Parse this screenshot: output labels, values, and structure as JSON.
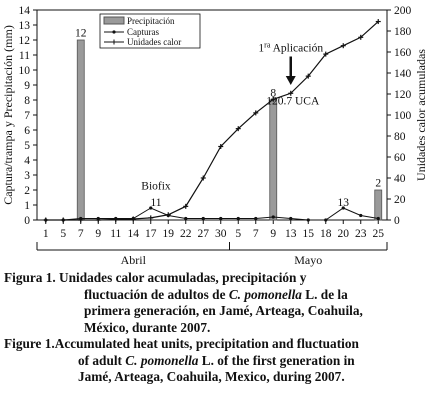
{
  "chart_data": {
    "type": "bar+line",
    "y_left_label": "Captura/trampa y Precipitación (mm)",
    "y_right_label": "Unidades calor acumuladas",
    "y_left_lim": [
      0,
      14
    ],
    "y_right_lim": [
      0,
      200
    ],
    "y_left_ticks": [
      "0",
      "1",
      "2",
      "3",
      "4",
      "5",
      "6",
      "7",
      "8",
      "9",
      "10",
      "11",
      "12",
      "13",
      "14"
    ],
    "y_right_ticks": [
      "0",
      "20",
      "40",
      "60",
      "80",
      "100",
      "120",
      "140",
      "160",
      "180",
      "200"
    ],
    "x_ticks": [
      "1",
      "5",
      "7",
      "9",
      "11",
      "14",
      "17",
      "19",
      "22",
      "27",
      "30",
      "5",
      "7",
      "9",
      "13",
      "15",
      "18",
      "20",
      "23",
      "25"
    ],
    "months": [
      {
        "name": "Abril"
      },
      {
        "name": "Mayo"
      }
    ],
    "legend": [
      "Precipitación",
      "Capturas",
      "Unidades calor"
    ],
    "series": [
      {
        "name": "Precipitación",
        "kind": "bar",
        "color": "#9a9a9a",
        "points": [
          {
            "x": 2.0,
            "y": 12,
            "label": "12"
          },
          {
            "x": 13.0,
            "y": 8,
            "label": "8"
          },
          {
            "x": 19.0,
            "y": 2,
            "label": "2"
          }
        ]
      },
      {
        "name": "Capturas",
        "kind": "line",
        "marker": "dot",
        "points": [
          {
            "x": 0,
            "y": 0
          },
          {
            "x": 1,
            "y": 0
          },
          {
            "x": 2,
            "y": 0.1
          },
          {
            "x": 3,
            "y": 0.1
          },
          {
            "x": 4,
            "y": 0.1
          },
          {
            "x": 5,
            "y": 0.1
          },
          {
            "x": 6,
            "y": 0.8
          },
          {
            "x": 7,
            "y": 0.3
          },
          {
            "x": 8,
            "y": 0.1
          },
          {
            "x": 9,
            "y": 0.1
          },
          {
            "x": 10,
            "y": 0.1
          },
          {
            "x": 11,
            "y": 0.1
          },
          {
            "x": 12,
            "y": 0.1
          },
          {
            "x": 13,
            "y": 0.2
          },
          {
            "x": 14,
            "y": 0.1
          },
          {
            "x": 15,
            "y": 0
          },
          {
            "x": 16,
            "y": 0
          },
          {
            "x": 17,
            "y": 0.8
          },
          {
            "x": 18,
            "y": 0.3
          },
          {
            "x": 19,
            "y": 0.1
          }
        ]
      },
      {
        "name": "Unidades calor",
        "kind": "line",
        "marker": "plus",
        "axis": "right",
        "points": [
          {
            "x": 0,
            "y": 0
          },
          {
            "x": 1,
            "y": 0
          },
          {
            "x": 2,
            "y": 0
          },
          {
            "x": 3,
            "y": 0
          },
          {
            "x": 4,
            "y": 0.5
          },
          {
            "x": 5,
            "y": 1
          },
          {
            "x": 6,
            "y": 2
          },
          {
            "x": 7,
            "y": 5
          },
          {
            "x": 8,
            "y": 13
          },
          {
            "x": 9,
            "y": 40
          },
          {
            "x": 10,
            "y": 70
          },
          {
            "x": 11,
            "y": 87
          },
          {
            "x": 12,
            "y": 102
          },
          {
            "x": 13,
            "y": 115
          },
          {
            "x": 14,
            "y": 120.7
          },
          {
            "x": 15,
            "y": 137
          },
          {
            "x": 16,
            "y": 158
          },
          {
            "x": 17,
            "y": 166
          },
          {
            "x": 18,
            "y": 174
          },
          {
            "x": 19,
            "y": 189
          }
        ]
      }
    ],
    "annotations": [
      {
        "text": "12",
        "x": 2.0,
        "y_left": 12.25
      },
      {
        "text": "8",
        "x": 13.0,
        "y_left": 8.25
      },
      {
        "text": "2",
        "x": 19.0,
        "y_left": 2.25
      },
      {
        "text": "Biofix",
        "x": 6.3,
        "y_left": 2.05
      },
      {
        "text": "11",
        "x": 6.3,
        "y_left": 0.95
      },
      {
        "text": "13",
        "x": 17.0,
        "y_left": 0.95
      },
      {
        "text": "1ra Aplicación",
        "x": 14.0,
        "y_left": 11.25
      },
      {
        "text": "120.7 UCA",
        "x": 14.0,
        "y_left": 7.7
      }
    ]
  },
  "captions": {
    "es": {
      "label": "Figura 1.",
      "line1": "Unidades calor acumuladas, precipitación y",
      "line2_a": "fluctuación de adultos de ",
      "line2_species": "C. pomonella",
      "line2_b": " L. de la",
      "line3": "primera generación, en Jamé, Arteaga, Coahuila,",
      "line4": "México, durante 2007."
    },
    "en": {
      "label": "Figure 1.",
      "line1": "Accumulated heat units, precipitation and fluctuation",
      "line2_a": "of adult ",
      "line2_species": "C. pomonella",
      "line2_b": " L. of the first generation in",
      "line3": "Jamé, Arteaga, Coahuila, Mexico, during 2007."
    }
  }
}
